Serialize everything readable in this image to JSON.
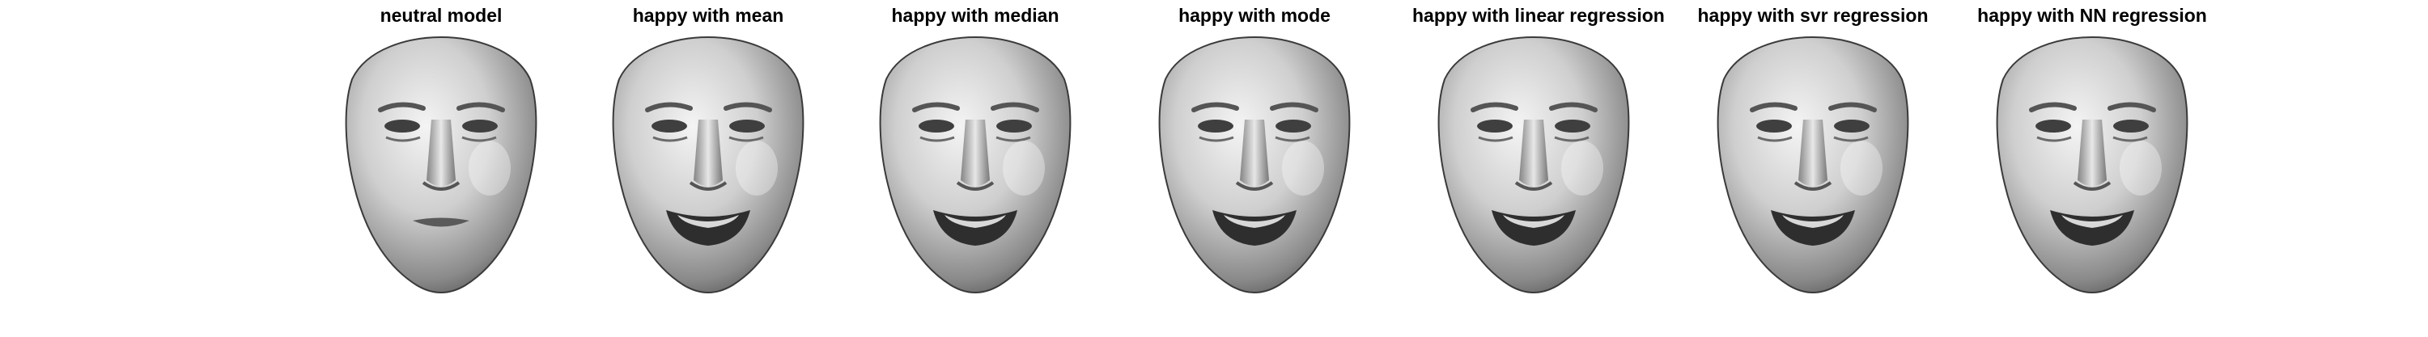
{
  "figure": {
    "panels": [
      {
        "title": "neutral model",
        "expression": "neutral"
      },
      {
        "title": "happy with mean",
        "expression": "happy"
      },
      {
        "title": "happy with median",
        "expression": "happy"
      },
      {
        "title": "happy with mode",
        "expression": "happy"
      },
      {
        "title": "happy with linear regression",
        "expression": "happy"
      },
      {
        "title": "happy with svr regression",
        "expression": "happy"
      },
      {
        "title": "happy with NN regression",
        "expression": "happy"
      }
    ]
  }
}
